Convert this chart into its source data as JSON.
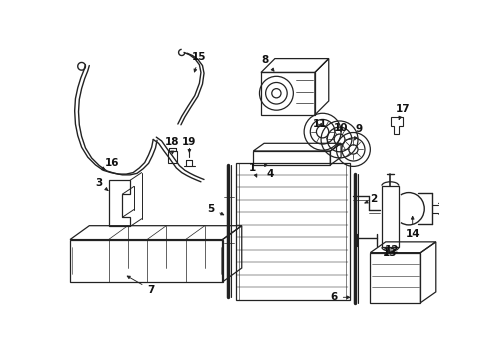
{
  "bg_color": "#ffffff",
  "line_color": "#222222",
  "label_color": "#111111",
  "figsize": [
    4.89,
    3.6
  ],
  "dpi": 100
}
